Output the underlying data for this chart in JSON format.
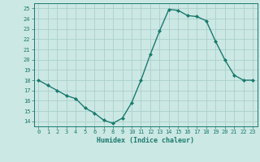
{
  "x": [
    0,
    1,
    2,
    3,
    4,
    5,
    6,
    7,
    8,
    9,
    10,
    11,
    12,
    13,
    14,
    15,
    16,
    17,
    18,
    19,
    20,
    21,
    22,
    23
  ],
  "y": [
    18,
    17.5,
    17,
    16.5,
    16.2,
    15.3,
    14.8,
    14.1,
    13.8,
    14.3,
    15.8,
    18,
    20.5,
    22.8,
    24.9,
    24.8,
    24.3,
    24.2,
    23.8,
    21.8,
    20,
    18.5,
    18,
    18
  ],
  "title": "",
  "xlabel": "Humidex (Indice chaleur)",
  "ylabel": "",
  "xlim": [
    -0.5,
    23.5
  ],
  "ylim": [
    13.5,
    25.5
  ],
  "yticks": [
    14,
    15,
    16,
    17,
    18,
    19,
    20,
    21,
    22,
    23,
    24,
    25
  ],
  "xticks": [
    0,
    1,
    2,
    3,
    4,
    5,
    6,
    7,
    8,
    9,
    10,
    11,
    12,
    13,
    14,
    15,
    16,
    17,
    18,
    19,
    20,
    21,
    22,
    23
  ],
  "line_color": "#1a7a6e",
  "marker_color": "#1a7a6e",
  "bg_color": "#cce8e4",
  "grid_color": "#aacfcb",
  "tick_color": "#1a7a6e",
  "label_color": "#1a7a6e"
}
